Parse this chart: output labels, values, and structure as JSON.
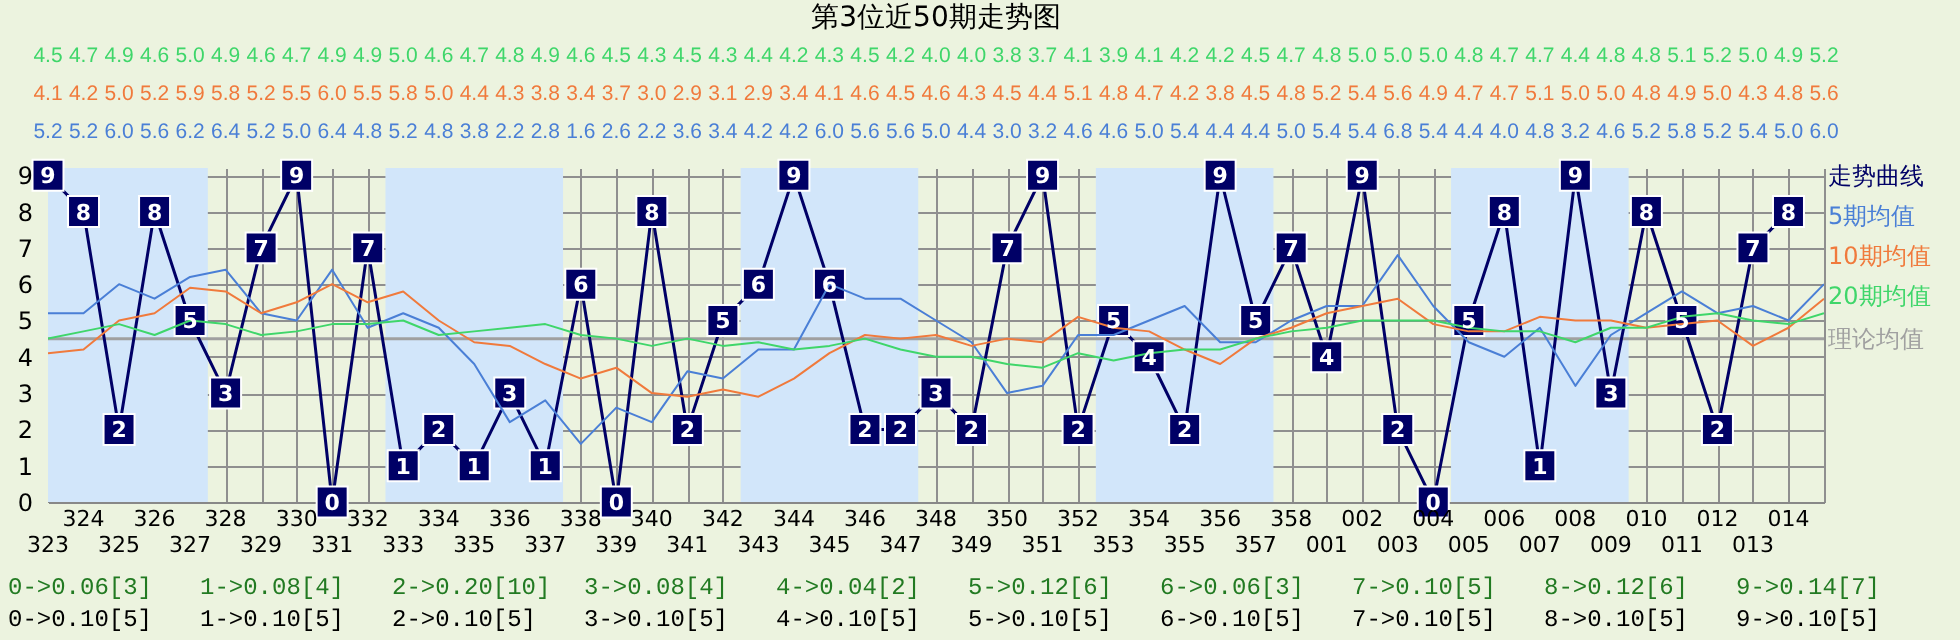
{
  "chart_data": {
    "type": "line",
    "title": "第3位近50期走势图",
    "categories": [
      "323",
      "324",
      "325",
      "326",
      "327",
      "328",
      "329",
      "330",
      "331",
      "332",
      "333",
      "334",
      "335",
      "336",
      "337",
      "338",
      "339",
      "340",
      "341",
      "342",
      "343",
      "344",
      "345",
      "346",
      "347",
      "348",
      "349",
      "350",
      "351",
      "352",
      "353",
      "354",
      "355",
      "356",
      "357",
      "358",
      "001",
      "002",
      "003",
      "004",
      "005",
      "006",
      "007",
      "008",
      "009",
      "010",
      "011",
      "012",
      "013",
      "014",
      null
    ],
    "ylim": [
      0,
      9.2
    ],
    "yticks": [
      0,
      1,
      2,
      3,
      4,
      5,
      6,
      7,
      8,
      9
    ],
    "grid": true,
    "legend": "right",
    "line_style": "solid",
    "series": [
      {
        "name": "走势曲线",
        "color": "#000066",
        "marker": "square",
        "values": [
          9,
          8,
          2,
          8,
          5,
          3,
          7,
          9,
          0,
          7,
          1,
          2,
          1,
          3,
          1,
          6,
          0,
          8,
          2,
          5,
          6,
          9,
          6,
          2,
          2,
          3,
          2,
          7,
          9,
          2,
          5,
          4,
          2,
          9,
          5,
          7,
          4,
          9,
          2,
          0,
          5,
          8,
          1,
          9,
          3,
          8,
          5,
          2,
          7,
          8,
          null
        ],
        "value_labels": [
          "9",
          "8",
          "2",
          "8",
          "5",
          "3",
          "7",
          "9",
          "0",
          "7",
          "1",
          "2",
          "1",
          "3",
          "1",
          "6",
          "0",
          "8",
          "2",
          "5",
          "6",
          "9",
          "6",
          "2",
          "2",
          "3",
          "2",
          "7",
          "9",
          "2",
          "5",
          "4",
          "2",
          "9",
          "5",
          "7",
          "4",
          "9",
          "2",
          "0",
          "5",
          "8",
          "1",
          "9",
          "3",
          "8",
          "5",
          "2",
          "7",
          "8",
          null
        ]
      },
      {
        "name": "5期均值",
        "color": "#4a7fd6",
        "marker": "none",
        "values": [
          5.2,
          5.2,
          6.0,
          5.6,
          6.2,
          6.4,
          5.2,
          5.0,
          6.4,
          4.8,
          5.2,
          4.8,
          3.8,
          2.2,
          2.8,
          1.6,
          2.6,
          2.2,
          3.6,
          3.4,
          4.2,
          4.2,
          6.0,
          5.6,
          5.6,
          5.0,
          4.4,
          3.0,
          3.2,
          4.6,
          4.6,
          5.0,
          5.4,
          4.4,
          4.4,
          5.0,
          5.4,
          5.4,
          6.8,
          5.4,
          4.4,
          4.0,
          4.8,
          3.2,
          4.6,
          5.2,
          5.8,
          5.2,
          5.4,
          5.0,
          6.0
        ],
        "value_labels": [
          "5.2",
          "5.2",
          "6.0",
          "5.6",
          "6.2",
          "6.4",
          "5.2",
          "5.0",
          "6.4",
          "4.8",
          "5.2",
          "4.8",
          "3.8",
          "2.2",
          "2.8",
          "1.6",
          "2.6",
          "2.2",
          "3.6",
          "3.4",
          "4.2",
          "4.2",
          "6.0",
          "5.6",
          "5.6",
          "5.0",
          "4.4",
          "3.0",
          "3.2",
          "4.6",
          "4.6",
          "5.0",
          "5.4",
          "4.4",
          "4.4",
          "5.0",
          "5.4",
          "5.4",
          "6.8",
          "5.4",
          "4.4",
          "4.0",
          "4.8",
          "3.2",
          "4.6",
          "5.2",
          "5.8",
          "5.2",
          "5.4",
          "5.0",
          "6.0"
        ]
      },
      {
        "name": "10期均值",
        "color": "#f07a3c",
        "marker": "none",
        "values": [
          4.1,
          4.2,
          5.0,
          5.2,
          5.9,
          5.8,
          5.2,
          5.5,
          6.0,
          5.5,
          5.8,
          5.0,
          4.4,
          4.3,
          3.8,
          3.4,
          3.7,
          3.0,
          2.9,
          3.1,
          2.9,
          3.4,
          4.1,
          4.6,
          4.5,
          4.6,
          4.3,
          4.5,
          4.4,
          5.1,
          4.8,
          4.7,
          4.2,
          3.8,
          4.5,
          4.8,
          5.2,
          5.4,
          5.6,
          4.9,
          4.7,
          4.7,
          5.1,
          5.0,
          5.0,
          4.8,
          4.9,
          5.0,
          4.3,
          4.8,
          5.6
        ],
        "value_labels": [
          "4.1",
          "4.2",
          "5.0",
          "5.2",
          "5.9",
          "5.8",
          "5.2",
          "5.5",
          "6.0",
          "5.5",
          "5.8",
          "5.0",
          "4.4",
          "4.3",
          "3.8",
          "3.4",
          "3.7",
          "3.0",
          "2.9",
          "3.1",
          "2.9",
          "3.4",
          "4.1",
          "4.6",
          "4.5",
          "4.6",
          "4.3",
          "4.5",
          "4.4",
          "5.1",
          "4.8",
          "4.7",
          "4.2",
          "3.8",
          "4.5",
          "4.8",
          "5.2",
          "5.4",
          "5.6",
          "4.9",
          "4.7",
          "4.7",
          "5.1",
          "5.0",
          "5.0",
          "4.8",
          "4.9",
          "5.0",
          "4.3",
          "4.8",
          "5.6"
        ]
      },
      {
        "name": "20期均值",
        "color": "#3fd66a",
        "marker": "none",
        "values": [
          4.5,
          4.7,
          4.9,
          4.6,
          5.0,
          4.9,
          4.6,
          4.7,
          4.9,
          4.9,
          5.0,
          4.6,
          4.7,
          4.8,
          4.9,
          4.6,
          4.5,
          4.3,
          4.5,
          4.3,
          4.4,
          4.2,
          4.3,
          4.5,
          4.2,
          4.0,
          4.0,
          3.8,
          3.7,
          4.1,
          3.9,
          4.1,
          4.2,
          4.2,
          4.5,
          4.7,
          4.8,
          5.0,
          5.0,
          5.0,
          4.8,
          4.7,
          4.7,
          4.4,
          4.8,
          4.8,
          5.1,
          5.2,
          5.0,
          4.9,
          5.2
        ],
        "value_labels": [
          "4.5",
          "4.7",
          "4.9",
          "4.6",
          "5.0",
          "4.9",
          "4.6",
          "4.7",
          "4.9",
          "4.9",
          "5.0",
          "4.6",
          "4.7",
          "4.8",
          "4.9",
          "4.6",
          "4.5",
          "4.3",
          "4.5",
          "4.3",
          "4.4",
          "4.2",
          "4.3",
          "4.5",
          "4.2",
          "4.0",
          "4.0",
          "3.8",
          "3.7",
          "4.1",
          "3.9",
          "4.1",
          "4.2",
          "4.2",
          "4.5",
          "4.7",
          "4.8",
          "5.0",
          "5.0",
          "5.0",
          "4.8",
          "4.7",
          "4.7",
          "4.4",
          "4.8",
          "4.8",
          "5.1",
          "5.2",
          "5.0",
          "4.9",
          "5.2"
        ]
      }
    ],
    "ref_lines": [
      {
        "axis": "y",
        "value": 4.5,
        "label": "理论均值",
        "color": "#a0a0a0"
      }
    ],
    "bands": [
      {
        "axis": "x",
        "from": "323",
        "to": "327",
        "color": "#d2e6fa"
      },
      {
        "axis": "x",
        "from": "333",
        "to": "337",
        "color": "#d2e6fa"
      },
      {
        "axis": "x",
        "from": "343",
        "to": "347",
        "color": "#d2e6fa"
      },
      {
        "axis": "x",
        "from": "353",
        "to": "357",
        "color": "#d2e6fa"
      },
      {
        "axis": "x",
        "from": "005",
        "to": "009",
        "color": "#d2e6fa"
      }
    ],
    "annotations": [
      "0->0.06[3]",
      "1->0.08[4]",
      "2->0.20[10]",
      "3->0.08[4]",
      "4->0.04[2]",
      "5->0.12[6]",
      "6->0.06[3]",
      "7->0.10[5]",
      "8->0.12[6]",
      "9->0.14[7]",
      "0->0.10[5]",
      "1->0.10[5]",
      "2->0.10[5]",
      "3->0.10[5]",
      "4->0.10[5]",
      "5->0.10[5]",
      "6->0.10[5]",
      "7->0.10[5]",
      "8->0.10[5]",
      "9->0.10[5]"
    ]
  }
}
